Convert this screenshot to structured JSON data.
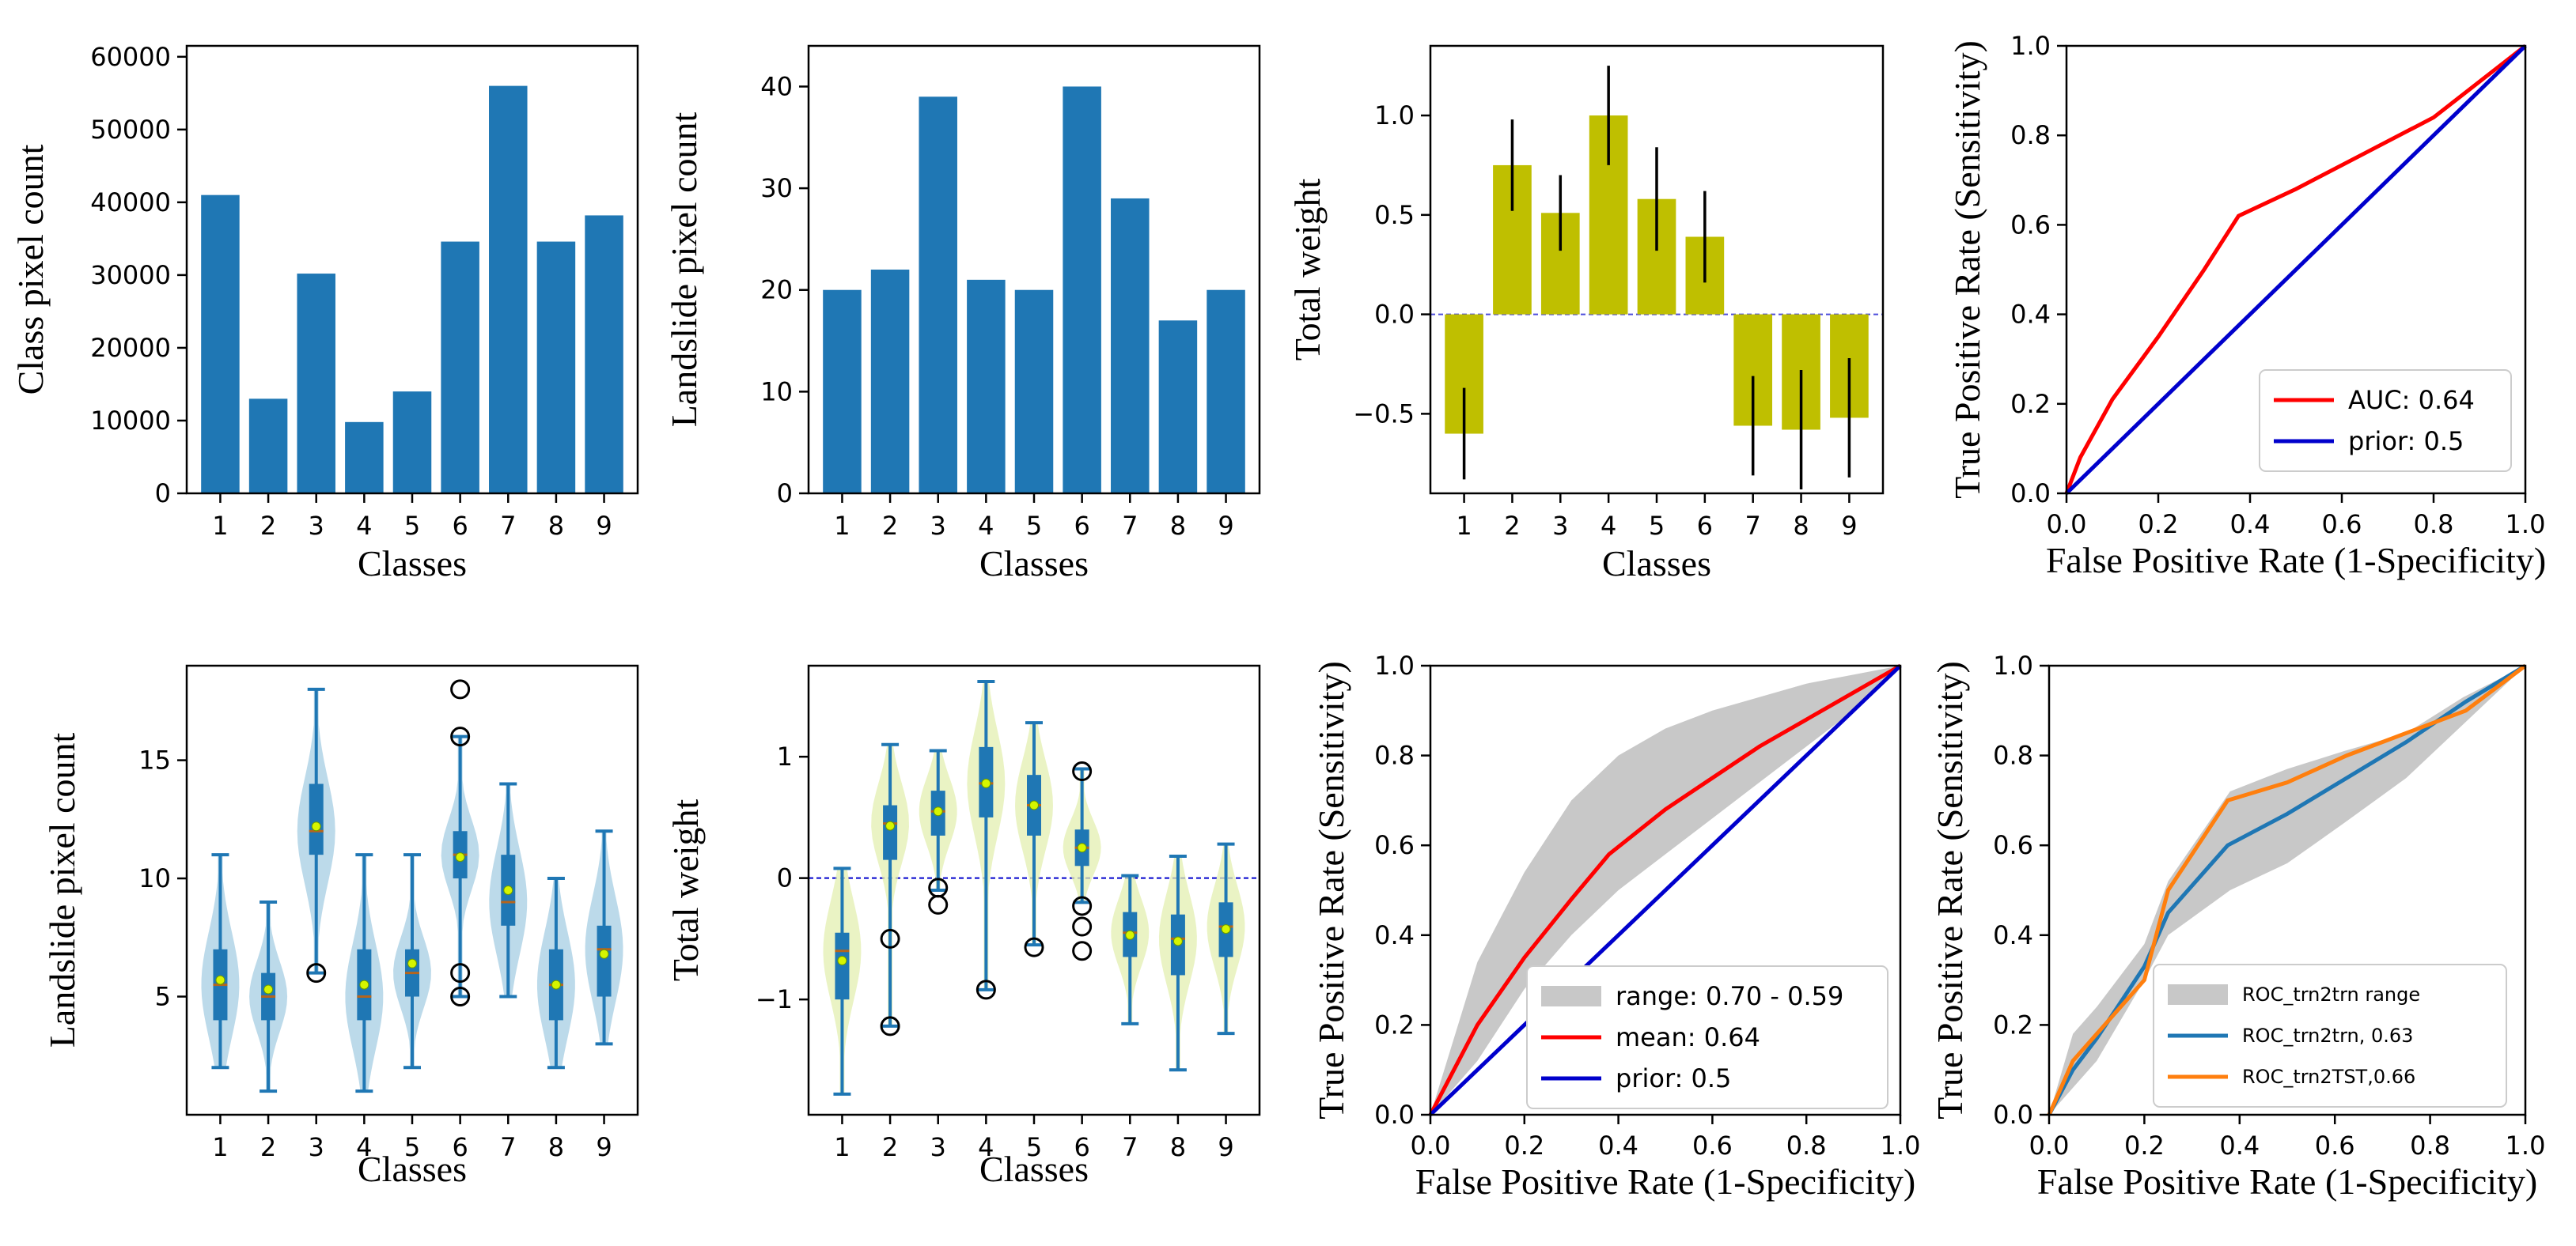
{
  "colors": {
    "bar_blue": "#1f77b4",
    "olive": "#bfbf00",
    "violin_fill": "#a6cde3",
    "teal": "#1f77b4",
    "median_line": "#b5651d",
    "mean_dot": "#d6f500",
    "red": "#ff0000",
    "blue": "#0000cc",
    "gray_band": "#c8c8c8",
    "orange": "#ff7f0e",
    "roc_teal": "#1f77b4",
    "zero_line": "#0000cc"
  },
  "chart_data": [
    {
      "id": "p1",
      "type": "bar",
      "categories": [
        "1",
        "2",
        "3",
        "4",
        "5",
        "6",
        "7",
        "8",
        "9"
      ],
      "values": [
        41000,
        13000,
        30200,
        9800,
        14000,
        34600,
        56000,
        34600,
        38200
      ],
      "xlabel": "Classes",
      "ylabel": "Class pixel count",
      "ylim": [
        0,
        61500
      ],
      "yticks": [
        0,
        10000,
        20000,
        30000,
        40000,
        50000,
        60000
      ],
      "ytick_labels": [
        "0",
        "10000",
        "20000",
        "30000",
        "40000",
        "50000",
        "60000"
      ]
    },
    {
      "id": "p2",
      "type": "bar",
      "categories": [
        "1",
        "2",
        "3",
        "4",
        "5",
        "6",
        "7",
        "8",
        "9"
      ],
      "values": [
        20,
        22,
        39,
        21,
        20,
        40,
        29,
        17,
        20
      ],
      "xlabel": "Classes",
      "ylabel": "Landslide pixel count",
      "ylim": [
        0,
        44
      ],
      "yticks": [
        0,
        10,
        20,
        30,
        40
      ],
      "ytick_labels": [
        "0",
        "10",
        "20",
        "30",
        "40"
      ]
    },
    {
      "id": "p3",
      "type": "bar",
      "categories": [
        "1",
        "2",
        "3",
        "4",
        "5",
        "6",
        "7",
        "8",
        "9"
      ],
      "values": [
        -0.6,
        0.75,
        0.51,
        1.0,
        0.58,
        0.39,
        -0.56,
        -0.58,
        -0.52
      ],
      "errors": [
        0.23,
        0.23,
        0.19,
        0.25,
        0.26,
        0.23,
        0.25,
        0.3,
        0.3
      ],
      "xlabel": "Classes",
      "ylabel": "Total weight",
      "ylim": [
        -0.9,
        1.35
      ],
      "yticks": [
        -0.5,
        0.0,
        0.5,
        1.0
      ],
      "ytick_labels": [
        "−0.5",
        "0.0",
        "0.5",
        "1.0"
      ]
    },
    {
      "id": "p4",
      "type": "line",
      "xlabel": "False Positive Rate (1-Specificity)",
      "ylabel": "True Positive Rate (Sensitivity)",
      "xlim": [
        0,
        1
      ],
      "ylim": [
        0,
        1
      ],
      "ticks": [
        0.0,
        0.2,
        0.4,
        0.6,
        0.8,
        1.0
      ],
      "tick_labels": [
        "0.0",
        "0.2",
        "0.4",
        "0.6",
        "0.8",
        "1.0"
      ],
      "legend_position": "bottom-right",
      "series": [
        {
          "name": "AUC: 0.64",
          "color": "#ff0000",
          "x": [
            0,
            0.03,
            0.1,
            0.2,
            0.3,
            0.375,
            0.5,
            0.65,
            0.8,
            1.0
          ],
          "y": [
            0,
            0.08,
            0.21,
            0.35,
            0.5,
            0.62,
            0.68,
            0.76,
            0.84,
            1.0
          ]
        },
        {
          "name": "prior: 0.5",
          "color": "#0000cc",
          "x": [
            0,
            1
          ],
          "y": [
            0,
            1
          ]
        }
      ]
    },
    {
      "id": "p5",
      "type": "violin",
      "categories": [
        "1",
        "2",
        "3",
        "4",
        "5",
        "6",
        "7",
        "8",
        "9"
      ],
      "xlabel": "Classes",
      "ylabel": "Landslide pixel count",
      "ylim": [
        0,
        19
      ],
      "yticks": [
        5,
        10,
        15
      ],
      "ytick_labels": [
        "5",
        "10",
        "15"
      ],
      "groups": [
        {
          "min": 2,
          "q1": 4,
          "median": 5.5,
          "q3": 7,
          "max": 11,
          "mean": 5.7,
          "outliers": []
        },
        {
          "min": 1,
          "q1": 4,
          "median": 5,
          "q3": 6,
          "max": 9,
          "mean": 5.3,
          "outliers": []
        },
        {
          "min": 6,
          "q1": 11,
          "median": 12,
          "q3": 14,
          "max": 18,
          "mean": 12.2,
          "outliers": [
            6
          ]
        },
        {
          "min": 1,
          "q1": 4,
          "median": 5,
          "q3": 7,
          "max": 11,
          "mean": 5.5,
          "outliers": []
        },
        {
          "min": 2,
          "q1": 5,
          "median": 6,
          "q3": 7,
          "max": 11,
          "mean": 6.4,
          "outliers": []
        },
        {
          "min": 5,
          "q1": 10,
          "median": 11,
          "q3": 12,
          "max": 16,
          "mean": 10.9,
          "outliers": [
            18,
            16,
            6,
            5
          ]
        },
        {
          "min": 5,
          "q1": 8,
          "median": 9,
          "q3": 11,
          "max": 14,
          "mean": 9.5,
          "outliers": []
        },
        {
          "min": 2,
          "q1": 4,
          "median": 5.5,
          "q3": 7,
          "max": 10,
          "mean": 5.5,
          "outliers": []
        },
        {
          "min": 3,
          "q1": 5,
          "median": 7,
          "q3": 8,
          "max": 12,
          "mean": 6.8,
          "outliers": []
        }
      ]
    },
    {
      "id": "p6",
      "type": "violin",
      "categories": [
        "1",
        "2",
        "3",
        "4",
        "5",
        "6",
        "7",
        "8",
        "9"
      ],
      "xlabel": "Classes",
      "ylabel": "Total weight",
      "ylim": [
        -1.95,
        1.75
      ],
      "yticks": [
        -1,
        0,
        1
      ],
      "ytick_labels": [
        "−1",
        "0",
        "1"
      ],
      "groups": [
        {
          "min": -1.78,
          "q1": -1.0,
          "median": -0.6,
          "q3": -0.45,
          "max": 0.08,
          "mean": -0.68,
          "outliers": []
        },
        {
          "min": -1.22,
          "q1": 0.15,
          "median": 0.45,
          "q3": 0.6,
          "max": 1.1,
          "mean": 0.43,
          "outliers": [
            -0.5,
            -1.22
          ]
        },
        {
          "min": -0.1,
          "q1": 0.35,
          "median": 0.55,
          "q3": 0.72,
          "max": 1.05,
          "mean": 0.55,
          "outliers": [
            -0.08,
            -0.22
          ]
        },
        {
          "min": -0.92,
          "q1": 0.5,
          "median": 0.78,
          "q3": 1.08,
          "max": 1.62,
          "mean": 0.78,
          "outliers": [
            -0.92
          ]
        },
        {
          "min": -0.55,
          "q1": 0.35,
          "median": 0.6,
          "q3": 0.85,
          "max": 1.28,
          "mean": 0.6,
          "outliers": [
            -0.57
          ]
        },
        {
          "min": -0.2,
          "q1": 0.1,
          "median": 0.25,
          "q3": 0.4,
          "max": 0.9,
          "mean": 0.25,
          "outliers": [
            0.88,
            -0.23,
            -0.4,
            -0.6
          ]
        },
        {
          "min": -1.2,
          "q1": -0.65,
          "median": -0.45,
          "q3": -0.28,
          "max": 0.02,
          "mean": -0.47,
          "outliers": []
        },
        {
          "min": -1.58,
          "q1": -0.8,
          "median": -0.5,
          "q3": -0.3,
          "max": 0.18,
          "mean": -0.52,
          "outliers": []
        },
        {
          "min": -1.28,
          "q1": -0.65,
          "median": -0.4,
          "q3": -0.2,
          "max": 0.28,
          "mean": -0.42,
          "outliers": []
        }
      ]
    },
    {
      "id": "p7",
      "type": "line",
      "xlabel": "False Positive Rate (1-Specificity)",
      "ylabel": "True Positive Rate (Sensitivity)",
      "xlim": [
        0,
        1
      ],
      "ylim": [
        0,
        1
      ],
      "ticks": [
        0.0,
        0.2,
        0.4,
        0.6,
        0.8,
        1.0
      ],
      "tick_labels": [
        "0.0",
        "0.2",
        "0.4",
        "0.6",
        "0.8",
        "1.0"
      ],
      "legend_position": "bottom-right",
      "band": {
        "name": "range: 0.70 - 0.59",
        "color": "#c8c8c8",
        "x": [
          0,
          0.1,
          0.2,
          0.3,
          0.4,
          0.5,
          0.6,
          0.7,
          0.8,
          0.9,
          1.0
        ],
        "upper": [
          0.0,
          0.34,
          0.54,
          0.7,
          0.8,
          0.86,
          0.9,
          0.93,
          0.96,
          0.98,
          1.0
        ],
        "lower": [
          0.0,
          0.12,
          0.28,
          0.4,
          0.5,
          0.58,
          0.66,
          0.74,
          0.82,
          0.9,
          1.0
        ]
      },
      "series": [
        {
          "name": "mean: 0.64",
          "color": "#ff0000",
          "x": [
            0,
            0.05,
            0.1,
            0.2,
            0.3,
            0.38,
            0.5,
            0.6,
            0.7,
            0.8,
            0.9,
            1.0
          ],
          "y": [
            0,
            0.1,
            0.2,
            0.35,
            0.48,
            0.58,
            0.68,
            0.75,
            0.82,
            0.88,
            0.94,
            1.0
          ]
        },
        {
          "name": "prior: 0.5",
          "color": "#0000cc",
          "x": [
            0,
            1
          ],
          "y": [
            0,
            1
          ]
        }
      ]
    },
    {
      "id": "p8",
      "type": "line",
      "xlabel": "False Positive Rate (1-Specificity)",
      "ylabel": "True Positive Rate (Sensitivity)",
      "xlim": [
        0,
        1
      ],
      "ylim": [
        0,
        1
      ],
      "ticks": [
        0.0,
        0.2,
        0.4,
        0.6,
        0.8,
        1.0
      ],
      "tick_labels": [
        "0.0",
        "0.2",
        "0.4",
        "0.6",
        "0.8",
        "1.0"
      ],
      "legend_position": "bottom-right",
      "band": {
        "name": "ROC_trn2trn range",
        "color": "#c8c8c8",
        "x": [
          0,
          0.05,
          0.1,
          0.2,
          0.25,
          0.38,
          0.5,
          0.62,
          0.75,
          0.87,
          1.0
        ],
        "upper": [
          0.0,
          0.18,
          0.24,
          0.38,
          0.52,
          0.72,
          0.77,
          0.81,
          0.85,
          0.93,
          1.0
        ],
        "lower": [
          0.0,
          0.06,
          0.12,
          0.3,
          0.4,
          0.5,
          0.56,
          0.65,
          0.75,
          0.87,
          1.0
        ]
      },
      "series": [
        {
          "name": "ROC_trn2trn, 0.63",
          "color": "#1f77b4",
          "x": [
            0,
            0.05,
            0.1,
            0.2,
            0.25,
            0.375,
            0.5,
            0.625,
            0.75,
            0.875,
            1.0
          ],
          "y": [
            0,
            0.1,
            0.17,
            0.33,
            0.45,
            0.6,
            0.67,
            0.75,
            0.83,
            0.92,
            1.0
          ]
        },
        {
          "name": "ROC_trn2TST,0.66",
          "color": "#ff7f0e",
          "x": [
            0,
            0.05,
            0.1,
            0.2,
            0.25,
            0.375,
            0.5,
            0.625,
            0.75,
            0.875,
            1.0
          ],
          "y": [
            0,
            0.12,
            0.18,
            0.3,
            0.5,
            0.7,
            0.74,
            0.8,
            0.85,
            0.9,
            1.0
          ]
        }
      ]
    }
  ]
}
